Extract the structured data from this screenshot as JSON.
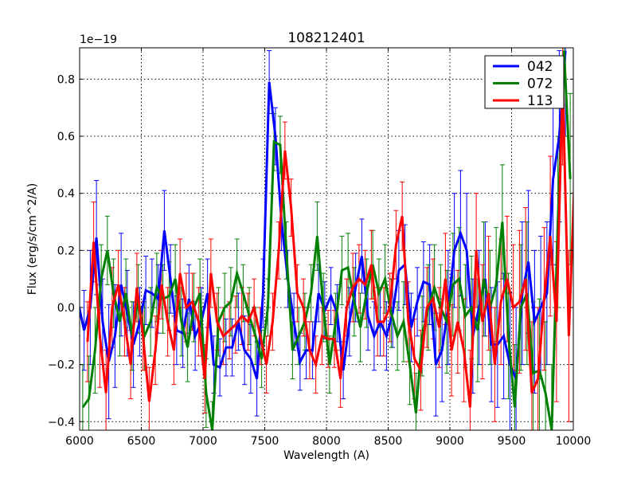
{
  "chart_data": {
    "type": "line",
    "title": "108212401",
    "xlabel": "Wavelength (A)",
    "ylabel": "Flux (erg/s/cm^2/A)",
    "offset_text": "1e−19",
    "xlim": [
      6000,
      10000
    ],
    "ylim": [
      -0.43,
      0.91
    ],
    "xticks": [
      6000,
      6500,
      7000,
      7500,
      8000,
      8500,
      9000,
      9500,
      10000
    ],
    "xtick_labels": [
      "6000",
      "6500",
      "7000",
      "7500",
      "8000",
      "8500",
      "9000",
      "9500",
      "10000"
    ],
    "yticks": [
      -0.4,
      -0.2,
      0.0,
      0.2,
      0.4,
      0.6,
      0.8
    ],
    "ytick_labels": [
      "−0.4",
      "−0.2",
      "0.0",
      "0.2",
      "0.4",
      "0.6",
      "0.8"
    ],
    "grid": true,
    "legend_placement": "top-right",
    "x": [
      6025,
      6075,
      6125,
      6175,
      6225,
      6275,
      6325,
      6375,
      6425,
      6475,
      6525,
      6575,
      6625,
      6675,
      6725,
      6775,
      6825,
      6875,
      6925,
      6975,
      7025,
      7075,
      7125,
      7175,
      7225,
      7275,
      7325,
      7375,
      7425,
      7475,
      7525,
      7575,
      7625,
      7675,
      7725,
      7775,
      7825,
      7875,
      7925,
      7975,
      8025,
      8075,
      8125,
      8175,
      8225,
      8275,
      8325,
      8375,
      8425,
      8475,
      8525,
      8575,
      8625,
      8675,
      8725,
      8775,
      8825,
      8875,
      8925,
      8975,
      9025,
      9075,
      9125,
      9175,
      9225,
      9275,
      9325,
      9375,
      9425,
      9475,
      9525,
      9575,
      9625,
      9675,
      9725,
      9775,
      9825,
      9875,
      9925,
      9975
    ],
    "series": [
      {
        "name": "042",
        "color": "#0000ff",
        "values": [
          0.02,
          -0.08,
          0.0,
          0.245,
          -0.05,
          -0.19,
          -0.1,
          0.08,
          -0.02,
          -0.13,
          -0.05,
          0.06,
          0.05,
          0.03,
          0.27,
          0.1,
          -0.08,
          -0.09,
          0.03,
          -0.1,
          -0.05,
          0.05,
          -0.2,
          -0.21,
          -0.14,
          -0.14,
          -0.05,
          -0.15,
          -0.18,
          -0.25,
          0.05,
          0.79,
          0.6,
          0.3,
          0.1,
          -0.05,
          -0.19,
          -0.15,
          -0.15,
          0.05,
          -0.01,
          0.04,
          -0.02,
          -0.22,
          -0.05,
          0.07,
          0.18,
          -0.03,
          -0.1,
          -0.05,
          -0.1,
          -0.02,
          0.13,
          0.15,
          -0.07,
          0.02,
          0.09,
          0.08,
          -0.2,
          -0.15,
          0.0,
          0.2,
          0.26,
          0.2,
          -0.1,
          0.0,
          0.1,
          -0.13,
          -0.13,
          -0.1,
          -0.2,
          -0.25,
          0.05,
          0.16,
          -0.05,
          0.0,
          0.05,
          0.45,
          0.6,
          0.9
        ],
        "yerr": [
          0.12,
          0.14,
          0.2,
          0.2,
          0.15,
          0.2,
          0.18,
          0.18,
          0.15,
          0.15,
          0.12,
          0.12,
          0.12,
          0.12,
          0.14,
          0.12,
          0.12,
          0.12,
          0.12,
          0.12,
          0.12,
          0.12,
          0.1,
          0.1,
          0.1,
          0.1,
          0.1,
          0.12,
          0.12,
          0.13,
          0.12,
          0.11,
          0.1,
          0.1,
          0.1,
          0.1,
          0.1,
          0.1,
          0.1,
          0.1,
          0.1,
          0.1,
          0.1,
          0.1,
          0.12,
          0.12,
          0.13,
          0.12,
          0.12,
          0.12,
          0.12,
          0.12,
          0.14,
          0.14,
          0.12,
          0.12,
          0.14,
          0.14,
          0.18,
          0.18,
          0.2,
          0.2,
          0.22,
          0.2,
          0.2,
          0.2,
          0.2,
          0.2,
          0.22,
          0.22,
          0.25,
          0.25,
          0.25,
          0.25,
          0.25,
          0.25,
          0.25,
          0.3,
          0.3,
          0.3
        ]
      },
      {
        "name": "072",
        "color": "#008000",
        "values": [
          -0.35,
          -0.32,
          -0.15,
          0.1,
          0.2,
          0.05,
          -0.05,
          0.05,
          -0.1,
          0.03,
          -0.1,
          -0.05,
          0.07,
          0.03,
          0.04,
          0.1,
          -0.05,
          -0.14,
          0.0,
          0.05,
          -0.3,
          -0.45,
          -0.05,
          0.0,
          0.02,
          0.12,
          0.05,
          -0.03,
          -0.1,
          -0.18,
          0.0,
          0.58,
          0.57,
          0.2,
          -0.15,
          -0.1,
          -0.05,
          0.05,
          0.25,
          0.0,
          -0.2,
          -0.05,
          0.13,
          0.14,
          0.02,
          -0.07,
          0.05,
          0.15,
          0.05,
          0.1,
          -0.02,
          -0.1,
          -0.05,
          -0.2,
          -0.37,
          -0.1,
          0.0,
          0.07,
          0.0,
          -0.05,
          0.08,
          0.1,
          -0.03,
          0.0,
          -0.08,
          0.1,
          0.0,
          0.08,
          0.3,
          -0.1,
          -0.35,
          0.0,
          0.05,
          -0.23,
          -0.22,
          -0.3,
          -0.45,
          0.3,
          0.9,
          0.45
        ],
        "yerr": [
          0.15,
          0.15,
          0.15,
          0.12,
          0.12,
          0.12,
          0.12,
          0.12,
          0.12,
          0.12,
          0.12,
          0.12,
          0.12,
          0.12,
          0.12,
          0.12,
          0.12,
          0.12,
          0.12,
          0.12,
          0.12,
          0.12,
          0.12,
          0.12,
          0.12,
          0.12,
          0.1,
          0.1,
          0.1,
          0.1,
          0.1,
          0.1,
          0.1,
          0.1,
          0.1,
          0.1,
          0.1,
          0.1,
          0.12,
          0.12,
          0.1,
          0.1,
          0.12,
          0.12,
          0.12,
          0.12,
          0.12,
          0.12,
          0.12,
          0.12,
          0.12,
          0.12,
          0.14,
          0.14,
          0.14,
          0.14,
          0.15,
          0.15,
          0.15,
          0.18,
          0.18,
          0.18,
          0.18,
          0.18,
          0.18,
          0.2,
          0.2,
          0.2,
          0.2,
          0.22,
          0.22,
          0.22,
          0.25,
          0.25,
          0.25,
          0.25,
          0.25,
          0.3,
          0.3,
          0.3
        ]
      },
      {
        "name": "113",
        "color": "#ff0000",
        "values": [
          -0.12,
          0.23,
          -0.1,
          -0.3,
          0.0,
          0.08,
          -0.05,
          -0.2,
          0.07,
          -0.1,
          -0.33,
          -0.15,
          0.08,
          -0.05,
          -0.15,
          0.12,
          0.0,
          0.02,
          -0.05,
          -0.25,
          0.12,
          -0.05,
          -0.1,
          -0.08,
          -0.06,
          -0.03,
          -0.05,
          0.0,
          -0.1,
          -0.2,
          -0.05,
          0.2,
          0.55,
          0.35,
          0.05,
          0.0,
          -0.15,
          -0.2,
          -0.1,
          -0.11,
          -0.11,
          -0.25,
          0.0,
          0.07,
          0.1,
          0.08,
          0.15,
          -0.05,
          -0.05,
          0.0,
          0.22,
          0.32,
          -0.05,
          -0.18,
          -0.22,
          0.0,
          0.03,
          -0.07,
          0.1,
          -0.15,
          -0.05,
          -0.15,
          -0.35,
          0.2,
          -0.05,
          0.05,
          -0.2,
          0.02,
          0.1,
          0.0,
          0.02,
          0.1,
          -0.3,
          -0.25,
          0.03,
          0.25,
          -0.05,
          0.8,
          -0.1,
          0.5
        ],
        "yerr": [
          0.14,
          0.14,
          0.18,
          0.15,
          0.14,
          0.12,
          0.12,
          0.12,
          0.12,
          0.12,
          0.12,
          0.12,
          0.12,
          0.12,
          0.12,
          0.12,
          0.12,
          0.1,
          0.12,
          0.12,
          0.12,
          0.1,
          0.1,
          0.1,
          0.1,
          0.1,
          0.1,
          0.1,
          0.1,
          0.1,
          0.1,
          0.1,
          0.1,
          0.1,
          0.1,
          0.1,
          0.1,
          0.1,
          0.1,
          0.1,
          0.1,
          0.1,
          0.1,
          0.12,
          0.12,
          0.12,
          0.12,
          0.12,
          0.12,
          0.12,
          0.12,
          0.12,
          0.14,
          0.14,
          0.14,
          0.14,
          0.14,
          0.14,
          0.16,
          0.16,
          0.18,
          0.18,
          0.2,
          0.2,
          0.2,
          0.2,
          0.2,
          0.22,
          0.22,
          0.22,
          0.25,
          0.25,
          0.25,
          0.25,
          0.25,
          0.28,
          0.28,
          0.3,
          0.3,
          0.3
        ]
      }
    ]
  }
}
